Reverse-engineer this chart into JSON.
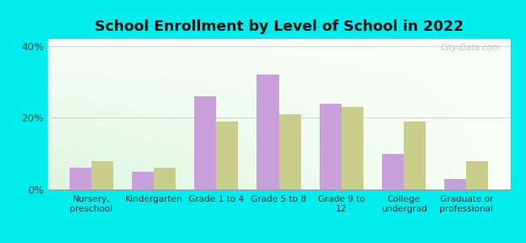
{
  "title": "School Enrollment by Level of School in 2022",
  "categories": [
    "Nursery,\npreschool",
    "Kindergarten",
    "Grade 1 to 4",
    "Grade 5 to 8",
    "Grade 9 to\n12",
    "College\nundergrad",
    "Graduate or\nprofessional"
  ],
  "zip_values": [
    6.0,
    5.0,
    26.0,
    32.0,
    24.0,
    10.0,
    3.0
  ],
  "il_values": [
    8.0,
    6.0,
    19.0,
    21.0,
    23.0,
    19.0,
    8.0
  ],
  "zip_color": "#c9a0dc",
  "il_color": "#c8cd8a",
  "background_outer": "#00eded",
  "ylim": [
    0,
    42
  ],
  "yticks": [
    0,
    20,
    40
  ],
  "ytick_labels": [
    "0%",
    "20%",
    "40%"
  ],
  "watermark": "City-Data.com",
  "bar_width": 0.35,
  "title_fontsize": 13
}
